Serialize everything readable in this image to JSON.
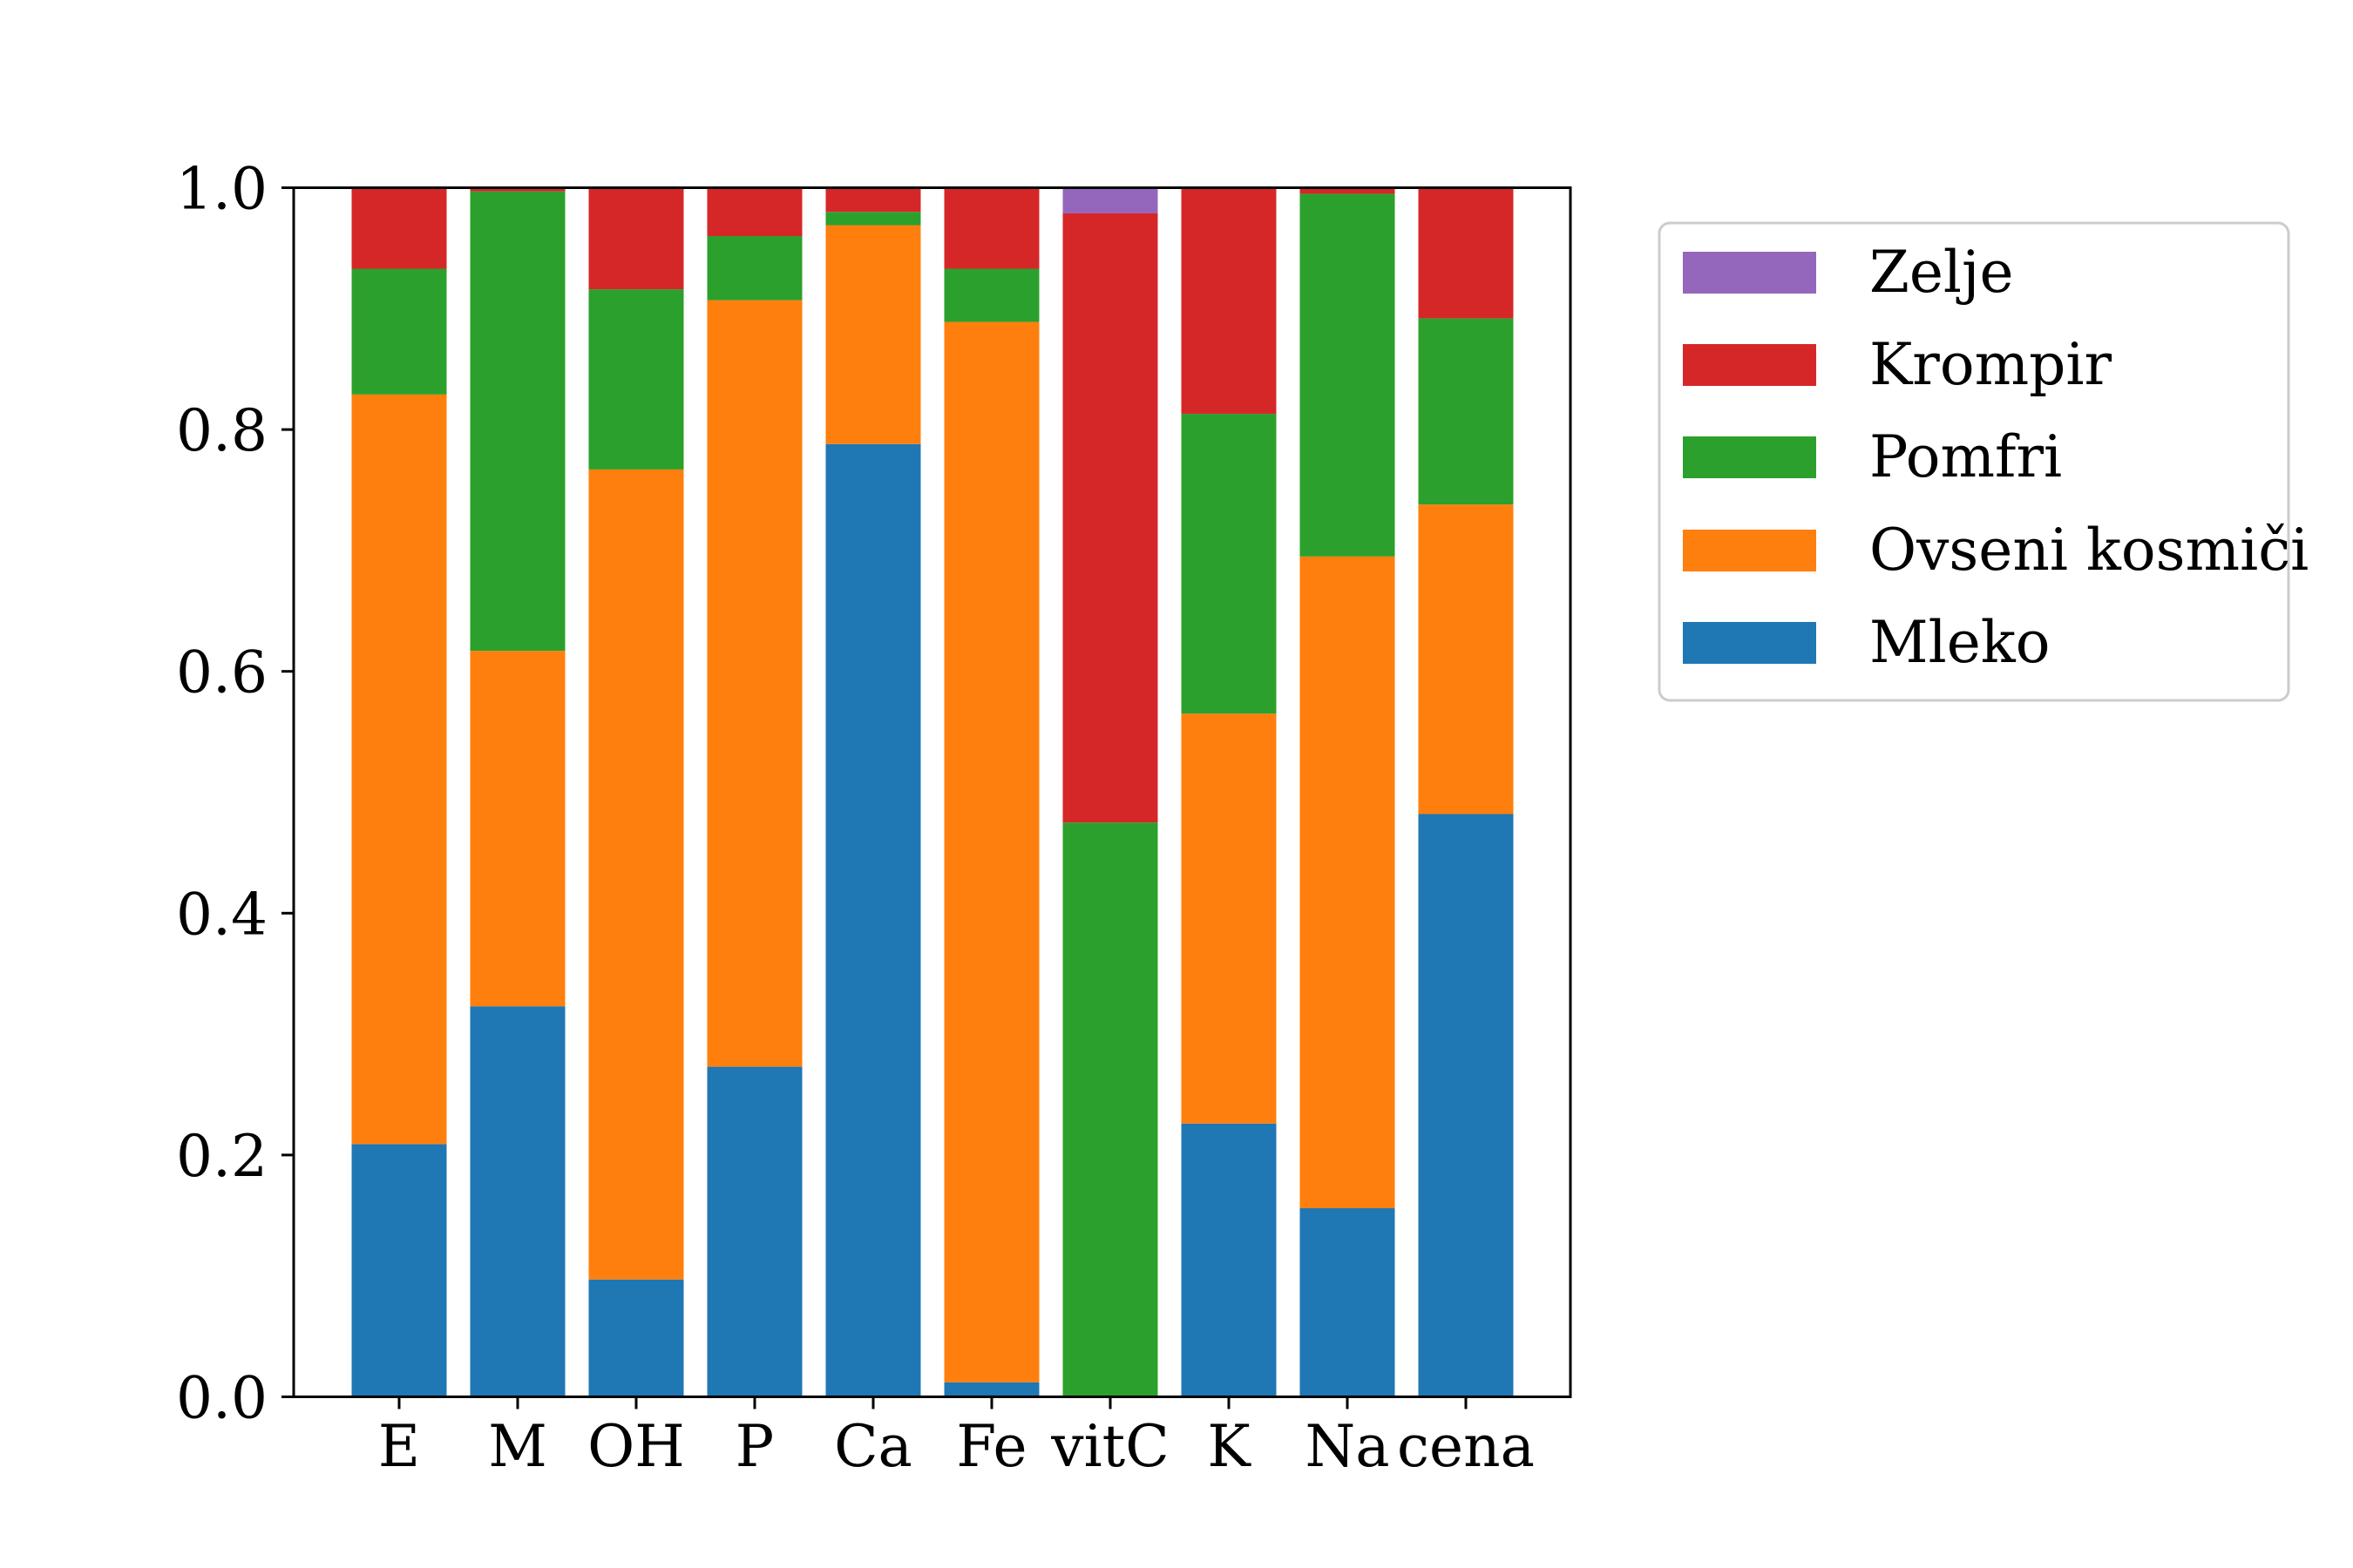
{
  "chart_data": {
    "type": "bar",
    "stacked": true,
    "title": "",
    "xlabel": "",
    "ylabel": "",
    "ylim": [
      0,
      1.0
    ],
    "grid": false,
    "legend_position": "outside-right-top",
    "categories": [
      "E",
      "M",
      "OH",
      "P",
      "Ca",
      "Fe",
      "vitC",
      "K",
      "Na",
      "cena"
    ],
    "yticks": [
      "0.0",
      "0.2",
      "0.4",
      "0.6",
      "0.8",
      "1.0"
    ],
    "ytick_values": [
      0.0,
      0.2,
      0.4,
      0.6,
      0.8,
      1.0
    ],
    "series": [
      {
        "name": "Mleko",
        "color": "#1f77b4",
        "values": [
          0.209,
          0.323,
          0.097,
          0.273,
          0.788,
          0.012,
          0.0,
          0.226,
          0.156,
          0.482
        ]
      },
      {
        "name": "Ovseni kosmiči",
        "color": "#ff7f0e",
        "values": [
          0.62,
          0.294,
          0.67,
          0.634,
          0.181,
          0.877,
          0.0,
          0.339,
          0.539,
          0.256
        ]
      },
      {
        "name": "Pomfri",
        "color": "#2ca02c",
        "values": [
          0.104,
          0.38,
          0.149,
          0.053,
          0.011,
          0.044,
          0.475,
          0.248,
          0.3,
          0.154
        ]
      },
      {
        "name": "Krompir",
        "color": "#d62728",
        "values": [
          0.067,
          0.003,
          0.084,
          0.04,
          0.02,
          0.067,
          0.504,
          0.186,
          0.005,
          0.107
        ]
      },
      {
        "name": "Zelje",
        "color": "#9467bd",
        "values": [
          0.0,
          0.0,
          0.0,
          0.0,
          0.0,
          0.0,
          0.021,
          0.001,
          0.0,
          0.001
        ]
      }
    ],
    "legend_order": [
      "Zelje",
      "Krompir",
      "Pomfri",
      "Ovseni kosmiči",
      "Mleko"
    ]
  }
}
